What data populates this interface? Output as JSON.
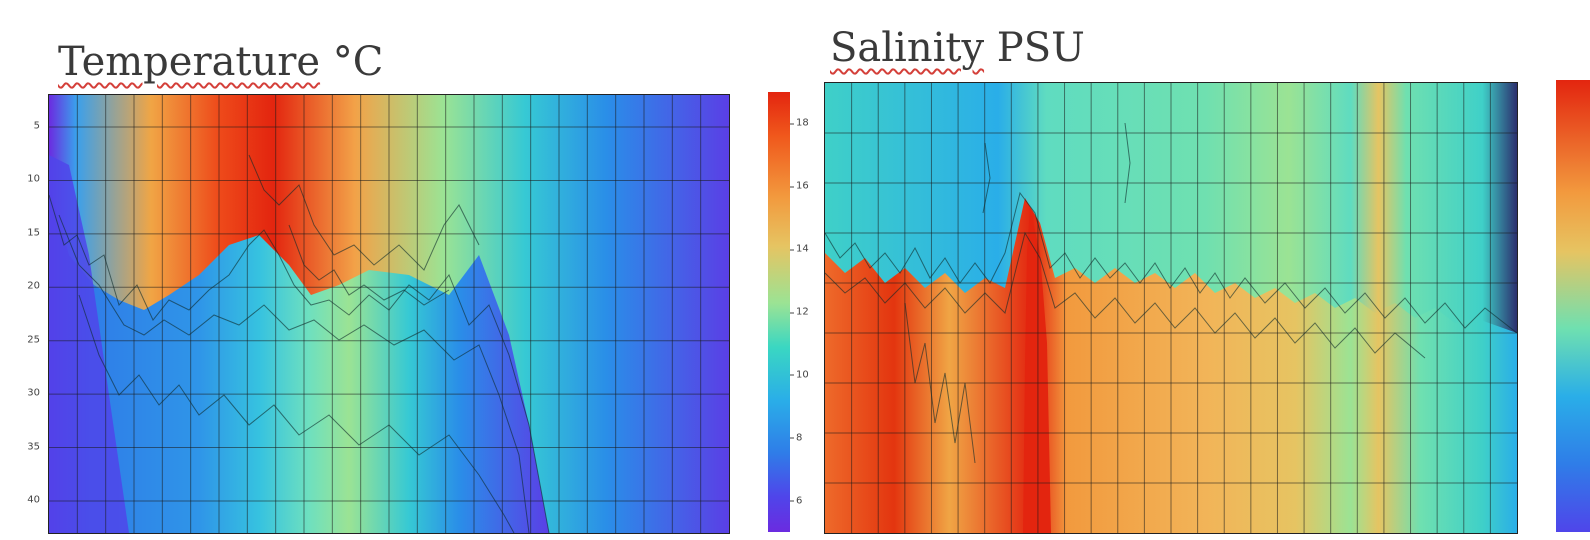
{
  "panels": {
    "temperature": {
      "title_word": "Temperature",
      "title_unit": "°C"
    },
    "salinity": {
      "title_word": "Salinity",
      "title_unit": "PSU"
    }
  },
  "chart_data": [
    {
      "type": "heatmap",
      "title": "Temperature °C",
      "ylabel": "",
      "y_ticks": [
        5,
        10,
        15,
        20,
        25,
        30,
        35,
        40
      ],
      "ylim": [
        43,
        2
      ],
      "colorbar_ticks": [
        6,
        8,
        10,
        12,
        14,
        16,
        18
      ],
      "colorbar_range": [
        5,
        19
      ],
      "colormap": "rainbow",
      "colors": {
        "hot": "#e3250f",
        "warm": "#f29a3e",
        "mid": "#9be394",
        "cool": "#2aaee8",
        "cold": "#6b2be0"
      }
    },
    {
      "type": "heatmap",
      "title": "Salinity PSU",
      "colormap": "rainbow",
      "colors": {
        "hot": "#e3250f",
        "warm": "#f29a3e",
        "mid": "#5fdcc0",
        "cool": "#2aaee8",
        "cold": "#2b2f6e"
      }
    }
  ]
}
